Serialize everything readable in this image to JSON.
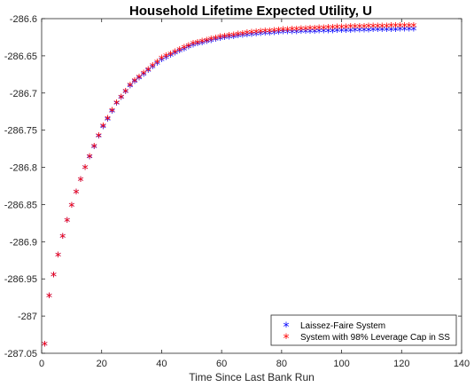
{
  "chart_data": {
    "type": "scatter",
    "title": "Household Lifetime Expected Utility, U",
    "xlabel": "Time Since Last Bank Run",
    "ylabel": "",
    "xlim": [
      0,
      140
    ],
    "ylim": [
      -287.05,
      -286.6
    ],
    "xticks": [
      0,
      20,
      40,
      60,
      80,
      100,
      120,
      140
    ],
    "yticks": [
      -287.05,
      -287,
      -286.95,
      -286.9,
      -286.85,
      -286.8,
      -286.75,
      -286.7,
      -286.65,
      -286.6
    ],
    "ytick_labels": [
      "-287.05",
      "-287",
      "-286.95",
      "-286.9",
      "-286.85",
      "-286.8",
      "-286.75",
      "-286.7",
      "-286.65",
      "-286.6"
    ],
    "xtick_labels": [
      "0",
      "20",
      "40",
      "60",
      "80",
      "100",
      "120",
      "140"
    ],
    "grid": false,
    "legend_position": "bottom-right",
    "marker": "*",
    "x_range": [
      1,
      125
    ],
    "series": [
      {
        "name": "Laissez-Faire System",
        "color": "#0000ff",
        "x": [
          1,
          2,
          3,
          4,
          5,
          6,
          7,
          8,
          9,
          10,
          12,
          15,
          20,
          25,
          30,
          40,
          50,
          60,
          70,
          80,
          90,
          100,
          110,
          125
        ],
        "y": [
          -287.04,
          -286.985,
          -286.964,
          -286.947,
          -286.929,
          -286.911,
          -286.895,
          -286.881,
          -286.866,
          -286.853,
          -286.829,
          -286.797,
          -286.751,
          -286.716,
          -286.69,
          -286.657,
          -286.638,
          -286.628,
          -286.623,
          -286.62,
          -286.619,
          -286.618,
          -286.617,
          -286.616
        ]
      },
      {
        "name": "System with 98% Leverage Cap in SS",
        "color": "#ff0000",
        "x": [
          1,
          2,
          3,
          4,
          5,
          6,
          7,
          8,
          9,
          10,
          12,
          15,
          20,
          25,
          30,
          40,
          50,
          60,
          70,
          80,
          90,
          100,
          110,
          125
        ],
        "y": [
          -287.04,
          -286.985,
          -286.964,
          -286.947,
          -286.929,
          -286.911,
          -286.895,
          -286.881,
          -286.866,
          -286.853,
          -286.829,
          -286.797,
          -286.75,
          -286.715,
          -286.689,
          -286.655,
          -286.636,
          -286.626,
          -286.62,
          -286.617,
          -286.615,
          -286.613,
          -286.612,
          -286.611
        ]
      }
    ]
  }
}
